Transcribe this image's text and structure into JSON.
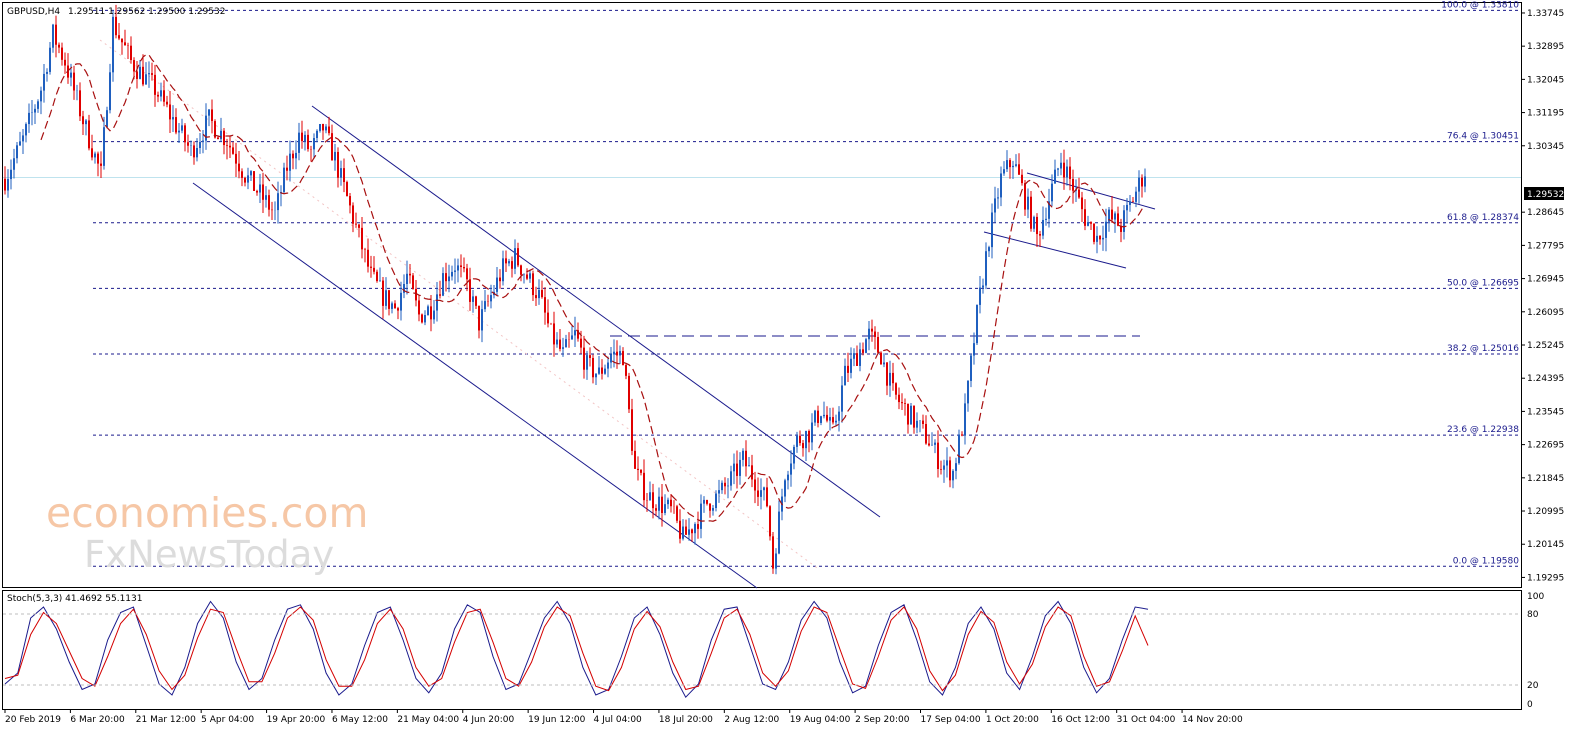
{
  "header": {
    "symbol": "GBPUSD,H4",
    "ohlc": "1.29511 1.29562 1.29500 1.29532"
  },
  "current_price_label": "1.29532",
  "watermark": {
    "line1": "economies.com",
    "line2": "FxNewsToday"
  },
  "indicator": {
    "label": "Stoch(5,3,3) 41.4692 55.1131",
    "levels": [
      "100",
      "80",
      "20",
      "0"
    ]
  },
  "colors": {
    "candle_up": "#1f5fbf",
    "candle_down": "#e00000",
    "ma": "#a81010",
    "channel": "#1a1a8c",
    "fib": "#1a1a8c",
    "price_line": "#bfe3ee",
    "stoch_main": "#1a1a8c",
    "stoch_signal": "#d40000"
  },
  "chart_data": {
    "type": "candlestick",
    "title": "GBPUSD,H4",
    "y_ticks": [
      "1.33745",
      "1.32895",
      "1.32045",
      "1.31195",
      "1.30345",
      "1.29532",
      "1.28645",
      "1.27795",
      "1.26945",
      "1.26095",
      "1.25245",
      "1.24395",
      "1.23545",
      "1.22695",
      "1.21845",
      "1.20995",
      "1.20145",
      "1.19295"
    ],
    "x_ticks": [
      "20 Feb 2019",
      "6 Mar 20:00",
      "21 Mar 12:00",
      "5 Apr 04:00",
      "19 Apr 20:00",
      "6 May 12:00",
      "21 May 04:00",
      "4 Jun 20:00",
      "19 Jun 12:00",
      "4 Jul 04:00",
      "18 Jul 20:00",
      "2 Aug 12:00",
      "19 Aug 04:00",
      "2 Sep 20:00",
      "17 Sep 04:00",
      "1 Oct 20:00",
      "16 Oct 12:00",
      "31 Oct 04:00",
      "14 Nov 20:00"
    ],
    "ylim": [
      1.1905,
      1.34
    ],
    "current_price": 1.29532,
    "fibonacci": [
      {
        "label": "100.0 @ 1.33810",
        "price": 1.3381
      },
      {
        "label": "76.4 @ 1.30451",
        "price": 1.30451
      },
      {
        "label": "61.8 @ 1.28374",
        "price": 1.28374
      },
      {
        "label": "50.0 @ 1.26695",
        "price": 1.26695
      },
      {
        "label": "38.2 @ 1.25016",
        "price": 1.25016
      },
      {
        "label": "23.6 @ 1.22938",
        "price": 1.22938
      },
      {
        "label": "0.0 @ 1.19580",
        "price": 1.1958
      }
    ],
    "price_path": [
      [
        0,
        1.295
      ],
      [
        3,
        1.305
      ],
      [
        6,
        1.318
      ],
      [
        8,
        1.332
      ],
      [
        10,
        1.325
      ],
      [
        13,
        1.31
      ],
      [
        16,
        1.296
      ],
      [
        18,
        1.335
      ],
      [
        21,
        1.325
      ],
      [
        25,
        1.318
      ],
      [
        28,
        1.31
      ],
      [
        31,
        1.302
      ],
      [
        34,
        1.31
      ],
      [
        37,
        1.305
      ],
      [
        40,
        1.296
      ],
      [
        43,
        1.29
      ],
      [
        45,
        1.286
      ],
      [
        47,
        1.298
      ],
      [
        49,
        1.306
      ],
      [
        51,
        1.302
      ],
      [
        53,
        1.308
      ],
      [
        55,
        1.3
      ],
      [
        57,
        1.29
      ],
      [
        59,
        1.28
      ],
      [
        61,
        1.27
      ],
      [
        63,
        1.265
      ],
      [
        65,
        1.262
      ],
      [
        67,
        1.27
      ],
      [
        69,
        1.26
      ],
      [
        71,
        1.262
      ],
      [
        73,
        1.27
      ],
      [
        75,
        1.273
      ],
      [
        77,
        1.268
      ],
      [
        79,
        1.258
      ],
      [
        81,
        1.265
      ],
      [
        83,
        1.272
      ],
      [
        85,
        1.275
      ],
      [
        87,
        1.27
      ],
      [
        89,
        1.265
      ],
      [
        91,
        1.255
      ],
      [
        93,
        1.25
      ],
      [
        95,
        1.255
      ],
      [
        97,
        1.247
      ],
      [
        99,
        1.245
      ],
      [
        101,
        1.25
      ],
      [
        103,
        1.25
      ],
      [
        105,
        1.22
      ],
      [
        107,
        1.214
      ],
      [
        109,
        1.212
      ],
      [
        111,
        1.21
      ],
      [
        113,
        1.203
      ],
      [
        115,
        1.207
      ],
      [
        117,
        1.212
      ],
      [
        119,
        1.214
      ],
      [
        121,
        1.218
      ],
      [
        123,
        1.223
      ],
      [
        125,
        1.218
      ],
      [
        127,
        1.212
      ],
      [
        128,
        1.196
      ],
      [
        130,
        1.22
      ],
      [
        132,
        1.228
      ],
      [
        134,
        1.23
      ],
      [
        136,
        1.236
      ],
      [
        138,
        1.23
      ],
      [
        140,
        1.245
      ],
      [
        142,
        1.25
      ],
      [
        144,
        1.255
      ],
      [
        146,
        1.25
      ],
      [
        148,
        1.24
      ],
      [
        150,
        1.236
      ],
      [
        152,
        1.232
      ],
      [
        154,
        1.228
      ],
      [
        156,
        1.222
      ],
      [
        158,
        1.22
      ],
      [
        160,
        1.235
      ],
      [
        162,
        1.26
      ],
      [
        164,
        1.28
      ],
      [
        166,
        1.295
      ],
      [
        168,
        1.3
      ],
      [
        170,
        1.29
      ],
      [
        172,
        1.28
      ],
      [
        174,
        1.29
      ],
      [
        176,
        1.3
      ],
      [
        178,
        1.293
      ],
      [
        180,
        1.285
      ],
      [
        182,
        1.28
      ],
      [
        184,
        1.285
      ],
      [
        186,
        1.283
      ],
      [
        188,
        1.29
      ],
      [
        190,
        1.297
      ]
    ],
    "stochastic": {
      "main": [
        20,
        30,
        80,
        90,
        70,
        40,
        15,
        20,
        60,
        85,
        90,
        55,
        20,
        10,
        35,
        75,
        95,
        80,
        40,
        15,
        25,
        60,
        88,
        92,
        70,
        30,
        10,
        20,
        55,
        85,
        90,
        60,
        25,
        12,
        30,
        70,
        92,
        85,
        45,
        15,
        20,
        50,
        80,
        95,
        75,
        35,
        10,
        15,
        45,
        80,
        90,
        65,
        30,
        8,
        20,
        60,
        88,
        90,
        55,
        20,
        15,
        40,
        78,
        95,
        80,
        40,
        12,
        18,
        55,
        85,
        92,
        60,
        22,
        10,
        35,
        75,
        90,
        70,
        30,
        15,
        45,
        82,
        95,
        75,
        35,
        12,
        25,
        60,
        90,
        88
      ],
      "signal": [
        25,
        28,
        65,
        85,
        75,
        50,
        25,
        18,
        45,
        75,
        88,
        65,
        32,
        15,
        28,
        62,
        88,
        85,
        52,
        22,
        22,
        48,
        80,
        90,
        78,
        42,
        18,
        18,
        42,
        75,
        88,
        70,
        35,
        18,
        25,
        58,
        85,
        88,
        58,
        25,
        18,
        40,
        72,
        90,
        82,
        48,
        18,
        14,
        35,
        70,
        86,
        72,
        40,
        15,
        18,
        48,
        80,
        88,
        65,
        30,
        18,
        32,
        68,
        90,
        85,
        52,
        20,
        16,
        45,
        78,
        90,
        70,
        32,
        14,
        28,
        65,
        86,
        76,
        40,
        20,
        38,
        72,
        90,
        82,
        45,
        18,
        22,
        50,
        82,
        55
      ]
    }
  }
}
